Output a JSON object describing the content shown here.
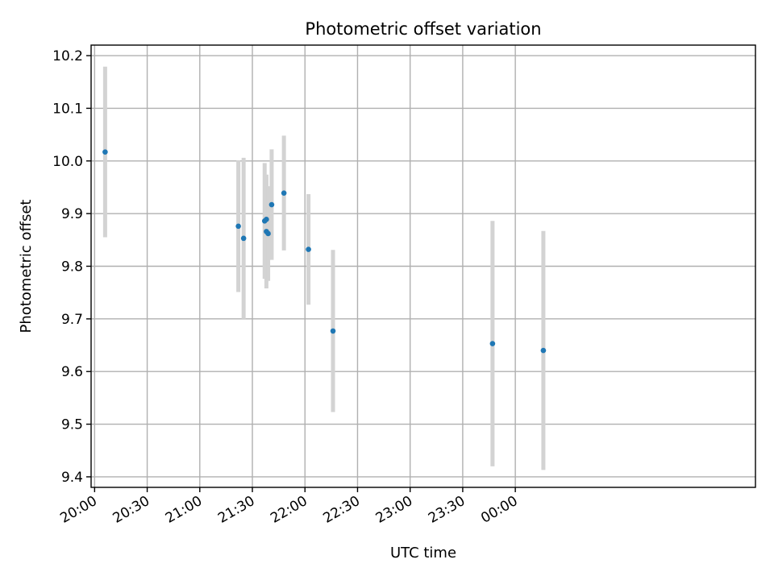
{
  "chart_data": {
    "type": "scatter",
    "title": "Photometric offset variation",
    "xlabel": "UTC time",
    "ylabel": "Photometric offset",
    "grid": true,
    "x_tick_labels": [
      "20:00",
      "20:30",
      "21:00",
      "21:30",
      "22:00",
      "22:30",
      "23:00",
      "23:30",
      "00:00"
    ],
    "y_tick_labels": [
      "9.4",
      "9.5",
      "9.6",
      "9.7",
      "9.8",
      "9.9",
      "10.0",
      "10.1",
      "10.2"
    ],
    "xlim": [
      "19:58",
      "02:17"
    ],
    "ylim": [
      9.38,
      10.22
    ],
    "colors": {
      "points": "#1f77b4",
      "errorbars": "#d3d3d3",
      "grid": "#b0b0b0"
    },
    "points": [
      {
        "x": "20:06",
        "y": 10.017,
        "yerr": 0.162
      },
      {
        "x": "21:22",
        "y": 9.876,
        "yerr": 0.125
      },
      {
        "x": "21:25",
        "y": 9.853,
        "yerr": 0.153
      },
      {
        "x": "21:37",
        "y": 9.886,
        "yerr": 0.11
      },
      {
        "x": "21:38",
        "y": 9.889,
        "yerr": 0.08
      },
      {
        "x": "21:38",
        "y": 9.866,
        "yerr": 0.108
      },
      {
        "x": "21:39",
        "y": 9.862,
        "yerr": 0.09
      },
      {
        "x": "21:41",
        "y": 9.917,
        "yerr": 0.105
      },
      {
        "x": "21:48",
        "y": 9.939,
        "yerr": 0.109
      },
      {
        "x": "22:02",
        "y": 9.832,
        "yerr": 0.105
      },
      {
        "x": "22:16",
        "y": 9.677,
        "yerr": 0.154
      },
      {
        "x": "23:47",
        "y": 9.653,
        "yerr": 0.233
      },
      {
        "x": "00:16",
        "y": 9.64,
        "yerr": 0.227
      }
    ]
  }
}
